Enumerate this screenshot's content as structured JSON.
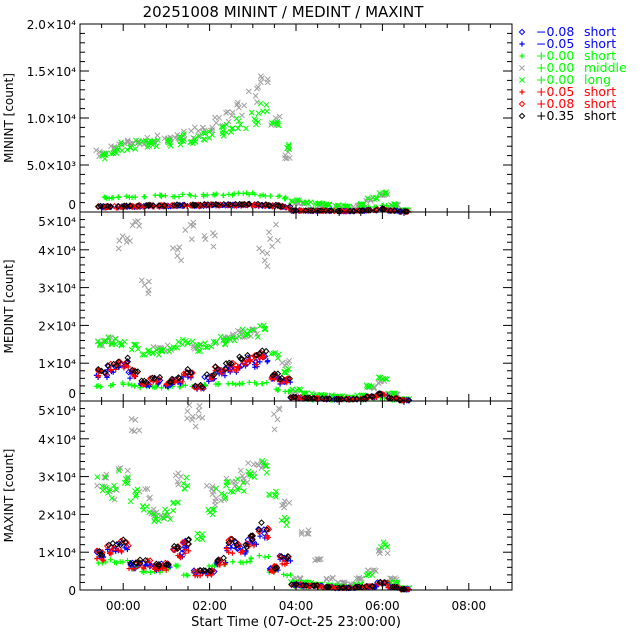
{
  "chart_data": {
    "type": "scatter",
    "title": "20251008 MININT / MEDINT / MAXINT",
    "xlabel": "Start Time (07-Oct-25 23:00:00)",
    "xlim_hours": [
      -1,
      9
    ],
    "x_ticks": [
      {
        "h": 0,
        "label": "00:00"
      },
      {
        "h": 2,
        "label": "02:00"
      },
      {
        "h": 4,
        "label": "04:00"
      },
      {
        "h": 6,
        "label": "06:00"
      },
      {
        "h": 8,
        "label": "08:00"
      }
    ],
    "x_hours": [
      -0.5,
      -0.25,
      0,
      0.25,
      0.5,
      0.75,
      1,
      1.25,
      1.5,
      1.75,
      2,
      2.25,
      2.5,
      2.75,
      3,
      3.25,
      3.5,
      3.75,
      4,
      4.25,
      4.5,
      4.75,
      5,
      5.25,
      5.5,
      5.75,
      6,
      6.25,
      6.5
    ],
    "legend": {
      "placement": "right",
      "entries": [
        {
          "key": "bd",
          "symbol": "diamond",
          "offset": "−0.08",
          "type": "short",
          "color": "#0000ff"
        },
        {
          "key": "bp",
          "symbol": "plus",
          "offset": "−0.05",
          "type": "short",
          "color": "#0000ff"
        },
        {
          "key": "gp",
          "symbol": "plus",
          "offset": "+0.00",
          "type": "short",
          "color": "#00ff00"
        },
        {
          "key": "mid",
          "symbol": "x",
          "offset": "+0.00",
          "type": "middle",
          "color": "#a0a0a0",
          "text_color": "#00ff00"
        },
        {
          "key": "long",
          "symbol": "x",
          "offset": "+0.00",
          "type": "long",
          "color": "#00ff00"
        },
        {
          "key": "rp",
          "symbol": "plus",
          "offset": "+0.05",
          "type": "short",
          "color": "#ff0000"
        },
        {
          "key": "rd",
          "symbol": "diamond",
          "offset": "+0.08",
          "type": "short",
          "color": "#ff0000"
        },
        {
          "key": "kd",
          "symbol": "diamond",
          "offset": "+0.35",
          "type": "short",
          "color": "#000000"
        }
      ]
    },
    "panels": [
      {
        "ylabel": "MININT [count]",
        "ylim": [
          0,
          20000
        ],
        "y_ticks": [
          {
            "v": 0,
            "label": "0"
          },
          {
            "v": 5000,
            "label": "5.0×10³"
          },
          {
            "v": 10000,
            "label": "1.0×10⁴"
          },
          {
            "v": 15000,
            "label": "1.5×10⁴"
          },
          {
            "v": 20000,
            "label": "2.0×10⁴"
          }
        ],
        "minor_step": 1000,
        "series": {
          "long": [
            6000,
            6500,
            7000,
            7200,
            7300,
            7400,
            7500,
            7600,
            7800,
            8000,
            8200,
            8500,
            9000,
            9500,
            10000,
            11000,
            9000,
            7000,
            1200,
            1000,
            900,
            800,
            700,
            600,
            800,
            1500,
            2000,
            800,
            200
          ],
          "mid": [
            6200,
            6800,
            7200,
            7500,
            7500,
            7700,
            7800,
            8000,
            8200,
            8500,
            9000,
            9500,
            10000,
            11000,
            12500,
            14000,
            9500,
            6000,
            1000,
            900,
            800,
            700,
            600,
            500,
            700,
            1300,
            1800,
            700,
            150
          ],
          "gp": [
            1500,
            1500,
            1600,
            1600,
            1600,
            1700,
            1700,
            1700,
            1800,
            1800,
            1800,
            1900,
            1900,
            1900,
            1900,
            1800,
            1700,
            1500,
            300,
            300,
            300,
            300,
            250,
            250,
            300,
            500,
            700,
            300,
            100
          ],
          "bd": [
            550,
            550,
            600,
            600,
            650,
            650,
            650,
            700,
            700,
            700,
            750,
            750,
            750,
            750,
            750,
            700,
            650,
            550,
            140,
            140,
            140,
            140,
            90,
            90,
            140,
            180,
            280,
            140,
            50
          ],
          "bp": [
            500,
            500,
            550,
            550,
            600,
            600,
            600,
            650,
            650,
            650,
            700,
            700,
            700,
            700,
            700,
            650,
            600,
            500,
            130,
            130,
            130,
            130,
            90,
            90,
            130,
            170,
            260,
            130,
            40
          ],
          "rp": [
            450,
            450,
            500,
            500,
            550,
            550,
            550,
            600,
            600,
            600,
            650,
            650,
            650,
            650,
            650,
            600,
            550,
            450,
            120,
            120,
            120,
            120,
            80,
            80,
            120,
            160,
            250,
            120,
            40
          ],
          "rd": [
            580,
            580,
            620,
            620,
            680,
            680,
            680,
            720,
            720,
            720,
            780,
            780,
            780,
            780,
            780,
            720,
            680,
            580,
            150,
            150,
            150,
            150,
            100,
            100,
            150,
            190,
            290,
            150,
            50
          ],
          "kd": [
            600,
            600,
            650,
            650,
            700,
            700,
            700,
            750,
            750,
            750,
            800,
            800,
            800,
            800,
            800,
            750,
            700,
            600,
            150,
            150,
            150,
            150,
            100,
            100,
            150,
            200,
            300,
            150,
            50
          ]
        }
      },
      {
        "ylabel": "MEDINT [count]",
        "ylim": [
          0,
          50000
        ],
        "y_ticks": [
          {
            "v": 0,
            "label": "0"
          },
          {
            "v": 10000,
            "label": "1×10⁴"
          },
          {
            "v": 20000,
            "label": "2×10⁴"
          },
          {
            "v": 30000,
            "label": "3×10⁴"
          },
          {
            "v": 40000,
            "label": "4×10⁴"
          },
          {
            "v": 50000,
            "label": "5×10⁴"
          }
        ],
        "minor_step": 2000,
        "series": {
          "long": [
            15000,
            16000,
            15000,
            14000,
            13000,
            13000,
            14000,
            15000,
            16000,
            14000,
            15000,
            16000,
            17000,
            18000,
            18000,
            19000,
            12000,
            8000,
            3000,
            2000,
            1500,
            1500,
            1200,
            1000,
            1500,
            4000,
            6000,
            2000,
            500
          ],
          "mid": [
            15000,
            16000,
            42000,
            45000,
            30000,
            14000,
            14000,
            40000,
            45000,
            14000,
            42000,
            16000,
            17000,
            18000,
            18000,
            38000,
            44000,
            10000,
            2500,
            2000,
            1500,
            1200,
            1000,
            900,
            1200,
            3500,
            5000,
            1800,
            400
          ],
          "gp": [
            4000,
            4200,
            4500,
            4000,
            3800,
            3700,
            3600,
            3800,
            4000,
            4000,
            4200,
            4300,
            4500,
            4600,
            4700,
            4800,
            3000,
            2500,
            500,
            400,
            300,
            300,
            300,
            300,
            300,
            600,
            800,
            300,
            100
          ],
          "bd": [
            7200,
            9000,
            9900,
            7200,
            4500,
            5400,
            4500,
            5400,
            7200,
            3600,
            6300,
            8100,
            9000,
            9900,
            10800,
            11700,
            6300,
            5400,
            900,
            700,
            600,
            500,
            450,
            450,
            500,
            1100,
            1800,
            700,
            180
          ],
          "bp": [
            6400,
            8000,
            8800,
            6400,
            4000,
            4800,
            4000,
            4800,
            6400,
            3200,
            5600,
            7200,
            8000,
            8800,
            9600,
            10400,
            5600,
            4800,
            800,
            650,
            550,
            480,
            400,
            400,
            480,
            950,
            1600,
            650,
            160
          ],
          "rp": [
            6800,
            8500,
            9400,
            6800,
            4300,
            5100,
            4300,
            5100,
            6800,
            3400,
            6000,
            7700,
            8500,
            9400,
            10200,
            11000,
            6000,
            5100,
            850,
            680,
            600,
            500,
            430,
            430,
            500,
            1000,
            1700,
            680,
            170
          ],
          "rd": [
            7600,
            9500,
            10500,
            7600,
            4800,
            5700,
            4800,
            5700,
            7600,
            3800,
            6700,
            8600,
            9500,
            10500,
            11400,
            12300,
            6700,
            5700,
            950,
            760,
            670,
            570,
            480,
            480,
            570,
            1150,
            1900,
            760,
            190
          ],
          "kd": [
            8000,
            10000,
            11000,
            8000,
            5000,
            6000,
            5000,
            6000,
            8000,
            4000,
            7000,
            9000,
            10000,
            11000,
            12000,
            13000,
            7000,
            6000,
            1000,
            800,
            700,
            600,
            500,
            500,
            600,
            1200,
            2000,
            800,
            200
          ]
        }
      },
      {
        "ylabel": "MAXINT [count]",
        "ylim": [
          0,
          50000
        ],
        "y_ticks": [
          {
            "v": 0,
            "label": "0"
          },
          {
            "v": 10000,
            "label": "1×10⁴"
          },
          {
            "v": 20000,
            "label": "2×10⁴"
          },
          {
            "v": 30000,
            "label": "3×10⁴"
          },
          {
            "v": 40000,
            "label": "4×10⁴"
          },
          {
            "v": 50000,
            "label": "5×10⁴"
          }
        ],
        "minor_step": 2000,
        "series": {
          "long": [
            28000,
            26000,
            30000,
            25000,
            22000,
            19000,
            20000,
            22000,
            28000,
            14000,
            20000,
            26000,
            27000,
            28000,
            30000,
            33000,
            26000,
            18000,
            2000,
            2000,
            1500,
            1200,
            1000,
            800,
            1500,
            4000,
            12000,
            2000,
            500
          ],
          "mid": [
            29000,
            25000,
            31000,
            43000,
            25000,
            20000,
            20000,
            30000,
            47000,
            46000,
            26000,
            24000,
            28000,
            30000,
            32000,
            34000,
            45000,
            22000,
            3000,
            15000,
            8000,
            3000,
            2000,
            1500,
            3000,
            5000,
            10000,
            3000,
            500
          ],
          "gp": [
            7000,
            7500,
            7500,
            6000,
            5000,
            5000,
            5500,
            6500,
            4000,
            4500,
            6500,
            6500,
            7000,
            7500,
            8000,
            8500,
            5000,
            4000,
            1000,
            800,
            600,
            500,
            500,
            500,
            600,
            1000,
            1500,
            600,
            100
          ],
          "bd": [
            9500,
            11500,
            12000,
            6800,
            7200,
            6200,
            6700,
            10500,
            12400,
            4800,
            4800,
            7700,
            12400,
            11500,
            13300,
            16000,
            5800,
            8600,
            1400,
            1100,
            1100,
            750,
            550,
            550,
            750,
            950,
            1900,
            750,
            180
          ],
          "bp": [
            8500,
            10200,
            10600,
            6000,
            6400,
            5500,
            6000,
            9400,
            11000,
            4300,
            4300,
            6800,
            11000,
            10200,
            11900,
            14400,
            5100,
            7600,
            1200,
            1000,
            1000,
            680,
            500,
            500,
            680,
            850,
            1700,
            680,
            170
          ],
          "rp": [
            8000,
            9600,
            10000,
            5600,
            6000,
            5200,
            5600,
            8800,
            10400,
            4000,
            4000,
            6400,
            10400,
            9600,
            11200,
            13600,
            4800,
            7200,
            1200,
            950,
            950,
            640,
            480,
            480,
            640,
            800,
            1600,
            640,
            160
          ],
          "rd": [
            9800,
            11800,
            12300,
            6900,
            7400,
            6400,
            6900,
            10800,
            12700,
            4900,
            4900,
            7900,
            12700,
            11800,
            13700,
            16600,
            5900,
            8800,
            1450,
            1150,
            1150,
            780,
            580,
            580,
            780,
            980,
            1950,
            780,
            190
          ],
          "kd": [
            10000,
            12000,
            12500,
            7000,
            7500,
            6500,
            7000,
            11000,
            13000,
            5000,
            5000,
            8000,
            13000,
            12000,
            14000,
            17000,
            6000,
            9000,
            1500,
            1200,
            1200,
            800,
            600,
            600,
            800,
            1000,
            2000,
            800,
            200
          ]
        }
      }
    ]
  }
}
